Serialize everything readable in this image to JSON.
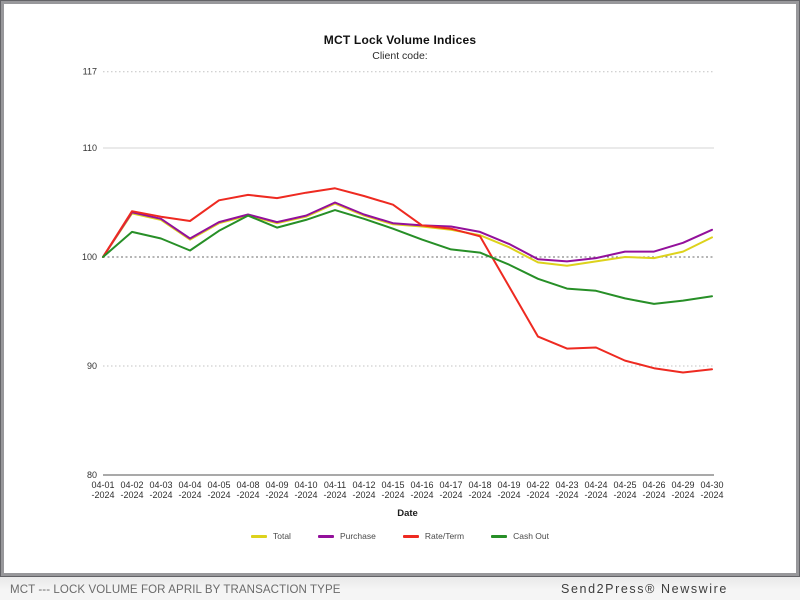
{
  "footer": {
    "caption_left": "MCT --- LOCK VOLUME FOR APRIL BY TRANSACTION TYPE",
    "caption_right": "Send2Press® Newswire"
  },
  "chart_data": {
    "type": "line",
    "title": "MCT Lock Volume Indices",
    "subtitle": "Client code:",
    "xlabel": "Date",
    "ylabel": "",
    "ylim": [
      80,
      117
    ],
    "grid": true,
    "legend_position": "bottom",
    "baseline_value": 100,
    "yticks": [
      {
        "value": 117,
        "style": "dotted-light"
      },
      {
        "value": 110,
        "style": "solid-light"
      },
      {
        "value": 100,
        "style": "dotted-dark"
      },
      {
        "value": 90,
        "style": "dotted-light"
      },
      {
        "value": 80,
        "style": "axis"
      }
    ],
    "x": [
      "04-01-2024",
      "04-02-2024",
      "04-03-2024",
      "04-04-2024",
      "04-05-2024",
      "04-08-2024",
      "04-09-2024",
      "04-10-2024",
      "04-11-2024",
      "04-12-2024",
      "04-15-2024",
      "04-16-2024",
      "04-17-2024",
      "04-18-2024",
      "04-19-2024",
      "04-22-2024",
      "04-23-2024",
      "04-24-2024",
      "04-25-2024",
      "04-26-2024",
      "04-29-2024",
      "04-30-2024"
    ],
    "series": [
      {
        "name": "Total",
        "color": "#ddd21c",
        "values": [
          100,
          104.0,
          103.4,
          101.6,
          103.1,
          103.8,
          103.1,
          103.7,
          104.9,
          103.8,
          103.0,
          102.8,
          102.5,
          102.0,
          100.9,
          99.5,
          99.2,
          99.6,
          100.0,
          99.9,
          100.5,
          101.8
        ]
      },
      {
        "name": "Purchase",
        "color": "#93109b",
        "values": [
          100,
          104.1,
          103.5,
          101.7,
          103.2,
          103.9,
          103.2,
          103.8,
          105.0,
          103.9,
          103.1,
          102.9,
          102.8,
          102.3,
          101.2,
          99.8,
          99.6,
          99.9,
          100.5,
          100.5,
          101.3,
          102.5
        ]
      },
      {
        "name": "Rate/Term",
        "color": "#ee2a21",
        "values": [
          100,
          104.2,
          103.7,
          103.3,
          105.2,
          105.7,
          105.4,
          105.9,
          106.3,
          105.6,
          104.8,
          102.9,
          102.6,
          101.9,
          97.3,
          92.7,
          91.6,
          91.7,
          90.5,
          89.8,
          89.4,
          89.7
        ]
      },
      {
        "name": "Cash Out",
        "color": "#278f27",
        "values": [
          100,
          102.3,
          101.7,
          100.6,
          102.4,
          103.8,
          102.7,
          103.4,
          104.3,
          103.5,
          102.6,
          101.6,
          100.7,
          100.4,
          99.3,
          98.0,
          97.1,
          96.9,
          96.2,
          95.7,
          96.0,
          96.4
        ]
      }
    ]
  }
}
